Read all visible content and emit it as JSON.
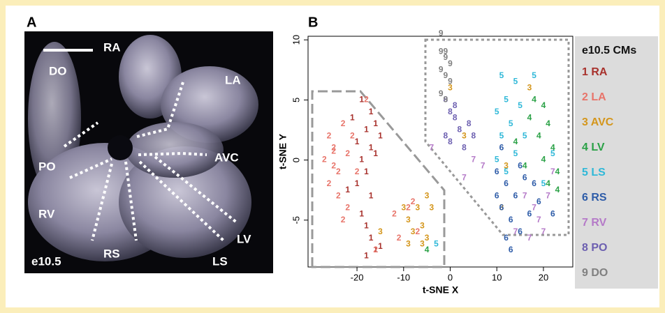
{
  "panel_a": {
    "letter": "A",
    "labels": {
      "ra": "RA",
      "do": "DO",
      "la": "LA",
      "po": "PO",
      "avc": "AVC",
      "rv": "RV",
      "rs": "RS",
      "lv": "LV",
      "ls": "LS",
      "stage": "e10.5"
    }
  },
  "chart_data": {
    "type": "scatter",
    "panel": "B",
    "xlabel": "t-SNE X",
    "ylabel": "t-SNE Y",
    "xlim": [
      -30.5,
      26.3
    ],
    "ylim": [
      -8.9,
      10.3
    ],
    "xticks": [
      -20,
      -10,
      0,
      10,
      20
    ],
    "yticks": [
      -5,
      0,
      5,
      10
    ],
    "legend_title": "e10.5 CMs",
    "series": [
      {
        "name": "1 RA",
        "marker": "1",
        "color": "#a8322d",
        "x": [
          -19,
          -17,
          -21,
          -18,
          -16,
          -20,
          -17,
          -19,
          -16,
          -18,
          -20,
          -17,
          -19,
          -18,
          -17,
          -16,
          -15,
          -18,
          -22,
          -15
        ],
        "y": [
          5,
          4,
          3.5,
          2.5,
          3,
          1.5,
          1,
          0,
          0.5,
          -1,
          -2,
          -3,
          -4.5,
          -5.5,
          -6.5,
          -7.5,
          -7.2,
          -8,
          -2.5,
          2
        ]
      },
      {
        "name": "2 LA",
        "marker": "2",
        "color": "#e8746a",
        "x": [
          -26,
          -27,
          -25,
          -24,
          -23,
          -22,
          -26,
          -24,
          -22,
          -23,
          -20,
          -21,
          -25,
          -18,
          -16,
          -12,
          -9,
          -7,
          -11,
          -8,
          -25
        ],
        "y": [
          2,
          0,
          1,
          -1,
          3,
          0.5,
          -2,
          -3,
          -4,
          -5,
          -1,
          2,
          -0.5,
          5,
          -7.5,
          -4.5,
          -4,
          -6,
          -6.5,
          -3.5,
          0.7
        ]
      },
      {
        "name": "3 AVC",
        "marker": "3",
        "color": "#d4961c",
        "x": [
          -9,
          -8,
          -7,
          -6,
          -5,
          -4,
          -6,
          -10,
          -5,
          -9,
          -15,
          0,
          12,
          17,
          3,
          11
        ],
        "y": [
          -5,
          -6,
          -4,
          -5.5,
          -3,
          -4,
          -7,
          -4,
          -6.5,
          -7,
          -6,
          6,
          -0.5,
          6,
          2,
          -4
        ]
      },
      {
        "name": "4 LV",
        "marker": "4",
        "color": "#2aa146",
        "x": [
          18,
          20,
          21,
          19,
          22,
          20,
          23,
          21,
          17,
          16,
          23,
          -5,
          14
        ],
        "y": [
          5,
          4.5,
          3,
          2,
          1,
          0,
          -1,
          -2,
          3.5,
          -0.5,
          -2.5,
          -7.5,
          1.5
        ]
      },
      {
        "name": "5 LS",
        "marker": "5",
        "color": "#2fb8d8",
        "x": [
          11,
          14,
          12,
          10,
          13,
          15,
          11,
          14,
          12,
          16,
          18,
          10,
          22,
          -3,
          20
        ],
        "y": [
          7,
          6.5,
          5,
          4,
          3,
          4.5,
          2,
          0.5,
          -1,
          2,
          7,
          0,
          0.5,
          -7,
          -2
        ]
      },
      {
        "name": "6 RS",
        "marker": "6",
        "color": "#2e5ca8",
        "x": [
          10,
          12,
          14,
          11,
          13,
          15,
          12,
          10,
          16,
          18,
          19,
          13,
          17,
          22,
          11,
          15
        ],
        "y": [
          -1,
          -2,
          -3,
          -4,
          -5,
          -6,
          -6.5,
          -3,
          -1.5,
          -2,
          -3.5,
          -7.5,
          -4.5,
          -4.5,
          1,
          -0.5
        ]
      },
      {
        "name": "7 RV",
        "marker": "7",
        "color": "#b57ac8",
        "x": [
          3,
          5,
          7,
          16,
          18,
          19,
          17,
          21,
          20,
          22,
          14,
          -4
        ],
        "y": [
          -1.5,
          0,
          -0.5,
          -3,
          -4,
          -5,
          -6.5,
          -3,
          -6,
          -1,
          -6,
          1
        ]
      },
      {
        "name": "8 PO",
        "marker": "8",
        "color": "#6c5fb0",
        "x": [
          -1,
          0,
          1,
          2,
          0,
          3,
          4,
          -1,
          5,
          1
        ],
        "y": [
          5,
          4,
          3.5,
          2.5,
          1.5,
          1,
          3,
          2,
          2,
          4.5
        ]
      },
      {
        "name": "9 DO",
        "marker": "9",
        "color": "#808080",
        "x": [
          -2,
          -1,
          0,
          -2,
          -1,
          0,
          -2,
          -1,
          -2,
          -1
        ],
        "y": [
          10.5,
          9,
          8,
          7.5,
          7,
          6.5,
          5.5,
          5,
          9,
          8.5
        ]
      }
    ]
  }
}
